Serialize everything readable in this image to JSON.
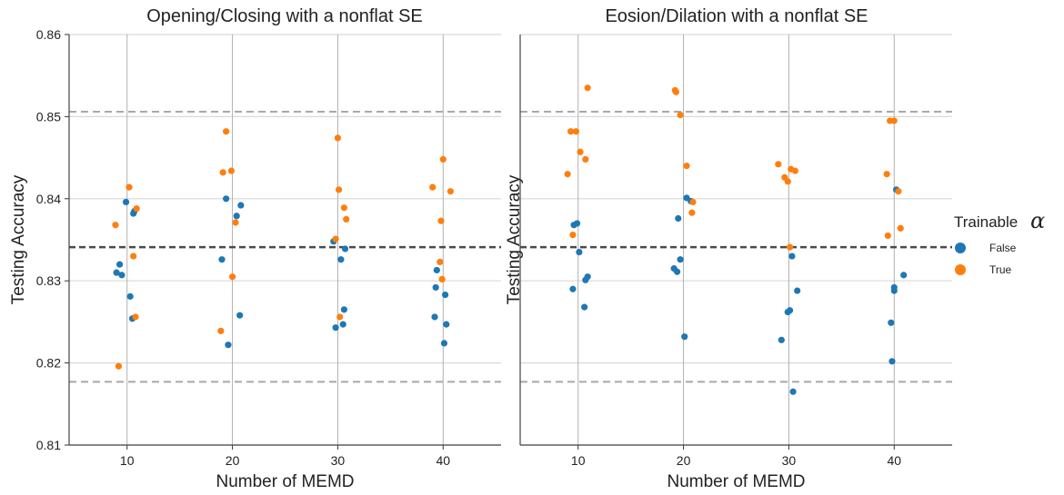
{
  "colors": {
    "false": "#1f77b4",
    "true": "#ff7f0e"
  },
  "legend": {
    "title": "Trainable",
    "title_symbol": "α",
    "entries": [
      {
        "key": "false",
        "label": "False"
      },
      {
        "key": "true",
        "label": "True"
      }
    ]
  },
  "chart_data": [
    {
      "type": "scatter",
      "title": "Opening/Closing with a nonflat SE",
      "xlabel": "Number of MEMD",
      "ylabel": "Testing Accuracy",
      "xlim": [
        4.5,
        45.5
      ],
      "ylim": [
        0.81,
        0.86
      ],
      "yticks": [
        "0.81",
        "0.82",
        "0.83",
        "0.84",
        "0.85",
        "0.86"
      ],
      "xticks": [
        "10",
        "20",
        "30",
        "40"
      ],
      "show_yticks": true,
      "grid": true,
      "reference_lines": [
        {
          "y": 0.8506,
          "style": "light-dashed"
        },
        {
          "y": 0.8341,
          "style": "dark-dashed"
        },
        {
          "y": 0.8177,
          "style": "light-dashed"
        }
      ],
      "series": [
        {
          "key": "false",
          "points": [
            [
              9.0,
              0.831
            ],
            [
              9.3,
              0.832
            ],
            [
              9.5,
              0.8307
            ],
            [
              9.9,
              0.8396
            ],
            [
              10.3,
              0.8281
            ],
            [
              10.5,
              0.8254
            ],
            [
              10.6,
              0.8382
            ],
            [
              10.7,
              0.8385
            ],
            [
              19.0,
              0.8326
            ],
            [
              19.4,
              0.84
            ],
            [
              19.6,
              0.8222
            ],
            [
              20.4,
              0.8379
            ],
            [
              20.7,
              0.8258
            ],
            [
              20.8,
              0.8392
            ],
            [
              29.6,
              0.8348
            ],
            [
              29.8,
              0.8243
            ],
            [
              30.3,
              0.8326
            ],
            [
              30.5,
              0.8247
            ],
            [
              30.6,
              0.8265
            ],
            [
              30.7,
              0.8339
            ],
            [
              39.2,
              0.8256
            ],
            [
              39.3,
              0.8292
            ],
            [
              39.4,
              0.8313
            ],
            [
              40.1,
              0.8224
            ],
            [
              40.2,
              0.8283
            ],
            [
              40.3,
              0.8247
            ]
          ]
        },
        {
          "key": "true",
          "points": [
            [
              8.9,
              0.8368
            ],
            [
              9.2,
              0.8196
            ],
            [
              10.2,
              0.8414
            ],
            [
              10.6,
              0.833
            ],
            [
              10.8,
              0.8256
            ],
            [
              10.9,
              0.8388
            ],
            [
              18.9,
              0.8239
            ],
            [
              19.1,
              0.8432
            ],
            [
              19.4,
              0.8482
            ],
            [
              19.9,
              0.8434
            ],
            [
              20.0,
              0.8305
            ],
            [
              20.3,
              0.8371
            ],
            [
              29.8,
              0.8351
            ],
            [
              30.0,
              0.8474
            ],
            [
              30.1,
              0.8411
            ],
            [
              30.2,
              0.8256
            ],
            [
              30.6,
              0.8389
            ],
            [
              30.8,
              0.8375
            ],
            [
              39.0,
              0.8414
            ],
            [
              39.7,
              0.8323
            ],
            [
              39.8,
              0.8373
            ],
            [
              39.9,
              0.8302
            ],
            [
              40.0,
              0.8448
            ],
            [
              40.7,
              0.8409
            ]
          ]
        }
      ]
    },
    {
      "type": "scatter",
      "title": "Eosion/Dilation with a nonflat SE",
      "xlabel": "Number of MEMD",
      "ylabel": "Testing Accuracy",
      "xlim": [
        4.5,
        45.5
      ],
      "ylim": [
        0.81,
        0.86
      ],
      "yticks": [
        "0.81",
        "0.82",
        "0.83",
        "0.84",
        "0.85",
        "0.86"
      ],
      "xticks": [
        "10",
        "20",
        "30",
        "40"
      ],
      "show_yticks": false,
      "grid": true,
      "reference_lines": [
        {
          "y": 0.8506,
          "style": "light-dashed"
        },
        {
          "y": 0.8341,
          "style": "dark-dashed"
        },
        {
          "y": 0.8177,
          "style": "light-dashed"
        }
      ],
      "series": [
        {
          "key": "false",
          "points": [
            [
              9.5,
              0.829
            ],
            [
              9.6,
              0.8368
            ],
            [
              9.9,
              0.837
            ],
            [
              10.1,
              0.8335
            ],
            [
              10.6,
              0.8268
            ],
            [
              10.7,
              0.8301
            ],
            [
              10.9,
              0.8305
            ],
            [
              19.1,
              0.8315
            ],
            [
              19.4,
              0.8311
            ],
            [
              19.5,
              0.8376
            ],
            [
              19.7,
              0.8326
            ],
            [
              20.1,
              0.8232
            ],
            [
              20.3,
              0.8401
            ],
            [
              20.7,
              0.8397
            ],
            [
              29.3,
              0.8228
            ],
            [
              29.9,
              0.8262
            ],
            [
              30.1,
              0.8264
            ],
            [
              30.3,
              0.833
            ],
            [
              30.4,
              0.8165
            ],
            [
              30.8,
              0.8288
            ],
            [
              39.7,
              0.8249
            ],
            [
              39.8,
              0.8202
            ],
            [
              40.0,
              0.8292
            ],
            [
              40.0,
              0.8288
            ],
            [
              40.2,
              0.8411
            ],
            [
              40.9,
              0.8307
            ]
          ]
        },
        {
          "key": "true",
          "points": [
            [
              9.0,
              0.843
            ],
            [
              9.3,
              0.8482
            ],
            [
              9.5,
              0.8356
            ],
            [
              9.8,
              0.8482
            ],
            [
              10.2,
              0.8457
            ],
            [
              10.7,
              0.8448
            ],
            [
              10.9,
              0.8535
            ],
            [
              19.2,
              0.8532
            ],
            [
              19.3,
              0.853
            ],
            [
              19.7,
              0.8502
            ],
            [
              20.3,
              0.844
            ],
            [
              20.8,
              0.8383
            ],
            [
              20.9,
              0.8396
            ],
            [
              29.0,
              0.8442
            ],
            [
              29.6,
              0.8426
            ],
            [
              29.9,
              0.8421
            ],
            [
              30.1,
              0.8341
            ],
            [
              30.2,
              0.8436
            ],
            [
              30.6,
              0.8434
            ],
            [
              39.3,
              0.843
            ],
            [
              39.4,
              0.8355
            ],
            [
              39.6,
              0.8495
            ],
            [
              40.0,
              0.8495
            ],
            [
              40.4,
              0.8409
            ],
            [
              40.6,
              0.8364
            ]
          ]
        }
      ]
    }
  ]
}
